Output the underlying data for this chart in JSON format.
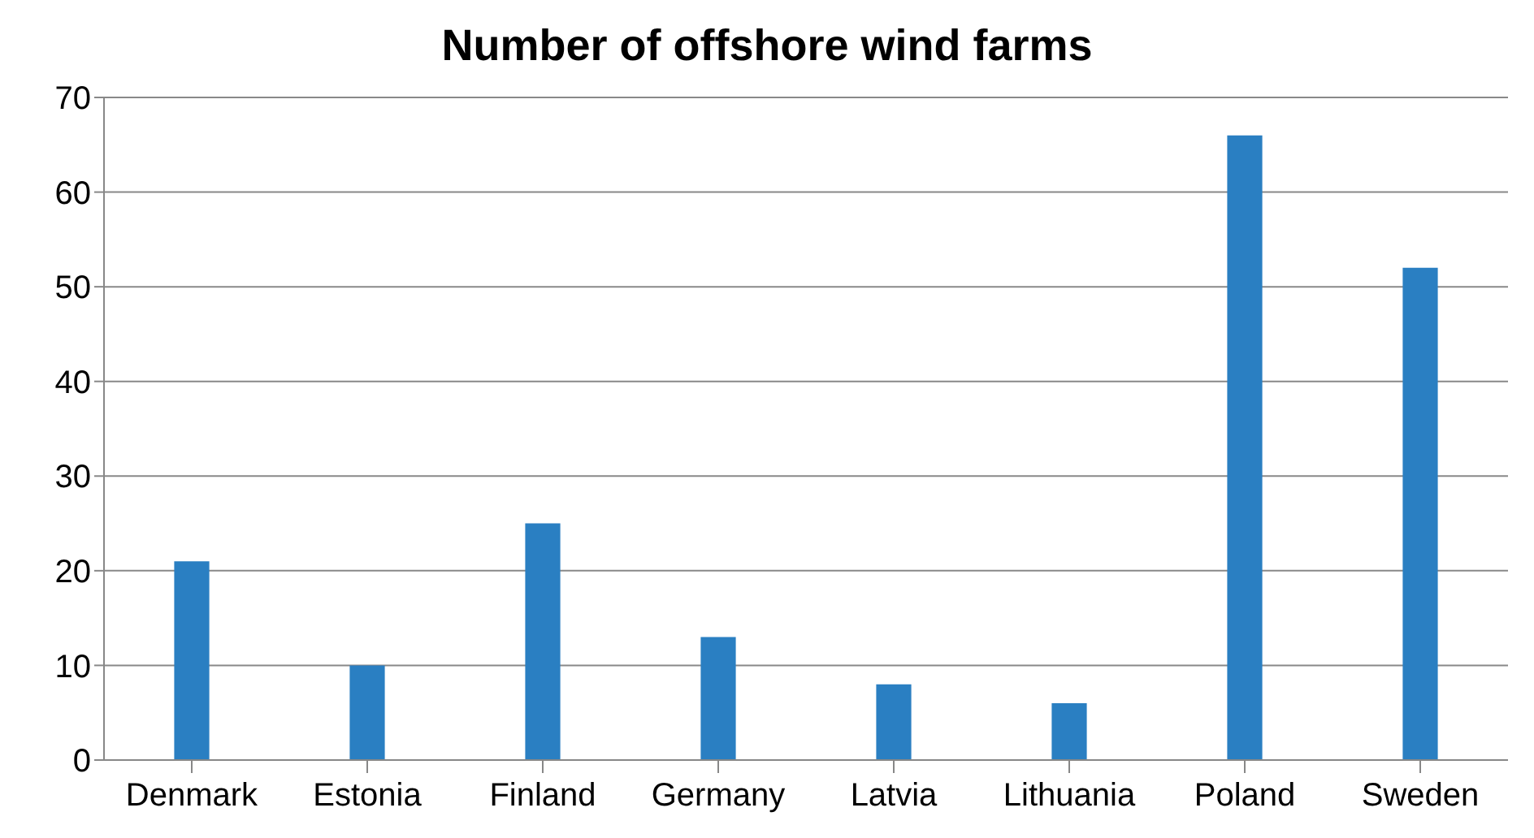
{
  "chart_data": {
    "type": "bar",
    "title": "Number of offshore wind farms",
    "categories": [
      "Denmark",
      "Estonia",
      "Finland",
      "Germany",
      "Latvia",
      "Lithuania",
      "Poland",
      "Sweden"
    ],
    "values": [
      21,
      10,
      25,
      13,
      8,
      6,
      66,
      52
    ],
    "color": "#2a7fc2",
    "ylim": [
      0,
      70
    ],
    "yticks": [
      0,
      10,
      20,
      30,
      40,
      50,
      60,
      70
    ],
    "grid": "y",
    "legend": false
  }
}
